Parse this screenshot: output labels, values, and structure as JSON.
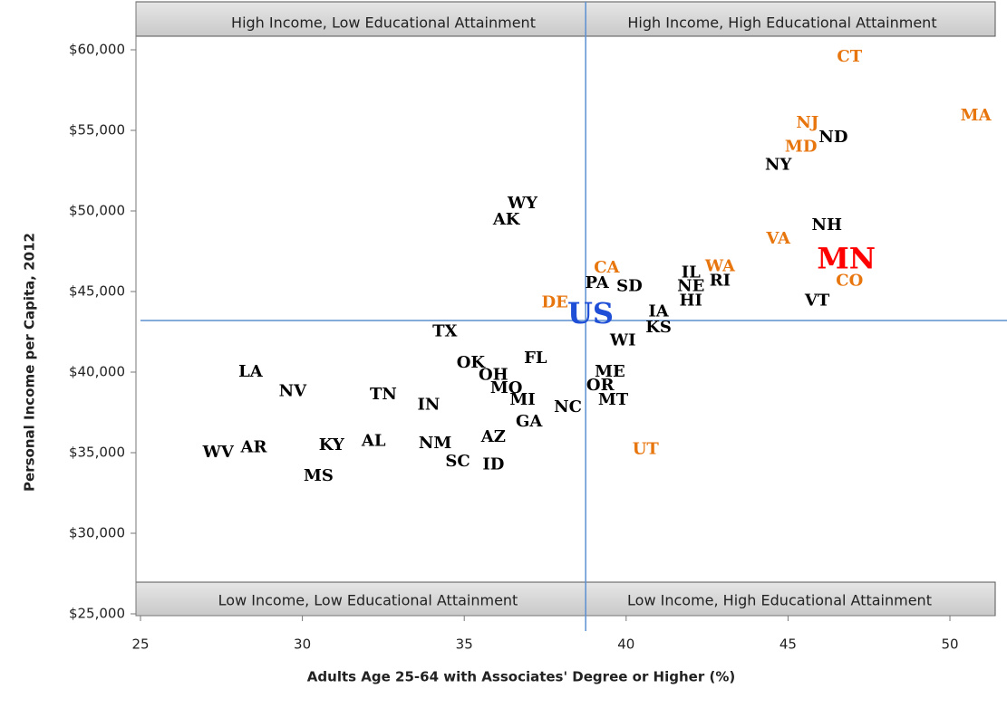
{
  "chart_data": {
    "type": "scatter",
    "x_label": "Adults Age 25-64 with Associates' Degree or Higher (%)",
    "y_label": "Personal Income per Capita, 2012",
    "quadrants": {
      "top_left": "High Income, Low Educational Attainment",
      "top_right": "High Income, High Educational Attainment",
      "bottom_left": "Low Income, Low Educational Attainment",
      "bottom_right": "Low Income, High Educational Attainment"
    },
    "xlim": [
      25,
      51.5
    ],
    "ylim": [
      25000,
      63000
    ],
    "xticks": [
      25,
      30,
      35,
      40,
      45,
      50
    ],
    "yticks": [
      {
        "value": 25000,
        "label": "$25,000"
      },
      {
        "value": 30000,
        "label": "$30,000"
      },
      {
        "value": 35000,
        "label": "$35,000"
      },
      {
        "value": 40000,
        "label": "$40,000"
      },
      {
        "value": 45000,
        "label": "$45,000"
      },
      {
        "value": 50000,
        "label": "$50,000"
      },
      {
        "value": 55000,
        "label": "$55,000"
      },
      {
        "value": 60000,
        "label": "$60,000"
      }
    ],
    "reference_lines": {
      "x": 38.75,
      "y": 43200,
      "color": "#5b8fd1"
    },
    "series": [
      {
        "color": "#000000",
        "labels": [
          "ND",
          "NY",
          "WY",
          "AK",
          "NH",
          "IL",
          "RI",
          "PA",
          "SD",
          "NE",
          "HI",
          "VT",
          "IA",
          "KS",
          "TX",
          "WI",
          "FL",
          "OK",
          "OH",
          "ME",
          "LA",
          "NV",
          "MO",
          "OR",
          "TN",
          "MI",
          "MT",
          "IN",
          "NC",
          "GA",
          "AZ",
          "AL",
          "NM",
          "KY",
          "AR",
          "WV",
          "SC",
          "ID",
          "MS"
        ],
        "x": [
          46.4,
          44.7,
          36.8,
          36.3,
          46.2,
          42.0,
          42.9,
          39.1,
          40.1,
          42.0,
          42.0,
          45.9,
          41.0,
          41.0,
          34.4,
          39.9,
          37.2,
          35.2,
          35.9,
          39.5,
          28.4,
          29.7,
          36.3,
          39.2,
          32.5,
          36.8,
          39.6,
          33.9,
          38.2,
          37.0,
          35.9,
          32.2,
          34.1,
          30.9,
          28.5,
          27.4,
          34.8,
          35.9,
          30.5
        ],
        "y": [
          54550,
          52850,
          50450,
          49450,
          49100,
          46150,
          45650,
          45500,
          45300,
          45300,
          44400,
          44400,
          43750,
          42750,
          42500,
          41950,
          40850,
          40550,
          39800,
          40000,
          40000,
          38800,
          39000,
          39150,
          38600,
          38250,
          38250,
          37950,
          37800,
          36900,
          35950,
          35700,
          35550,
          35450,
          35300,
          35000,
          34450,
          34250,
          33550
        ]
      },
      {
        "color": "#e8760f",
        "labels": [
          "CT",
          "MA",
          "NJ",
          "MD",
          "VA",
          "WA",
          "CA",
          "CO",
          "DE",
          "UT"
        ],
        "x": [
          46.9,
          50.8,
          45.6,
          45.4,
          44.7,
          42.9,
          39.4,
          46.9,
          37.8,
          40.6
        ],
        "y": [
          59550,
          55900,
          55450,
          53950,
          48250,
          46550,
          46450,
          45650,
          44300,
          35200
        ]
      },
      {
        "color": "#ff0000",
        "labels": [
          "MN"
        ],
        "x": [
          46.8
        ],
        "y": [
          46900
        ]
      },
      {
        "color": "#1f4fd6",
        "labels": [
          "US"
        ],
        "x": [
          38.9
        ],
        "y": [
          43500
        ]
      }
    ]
  }
}
